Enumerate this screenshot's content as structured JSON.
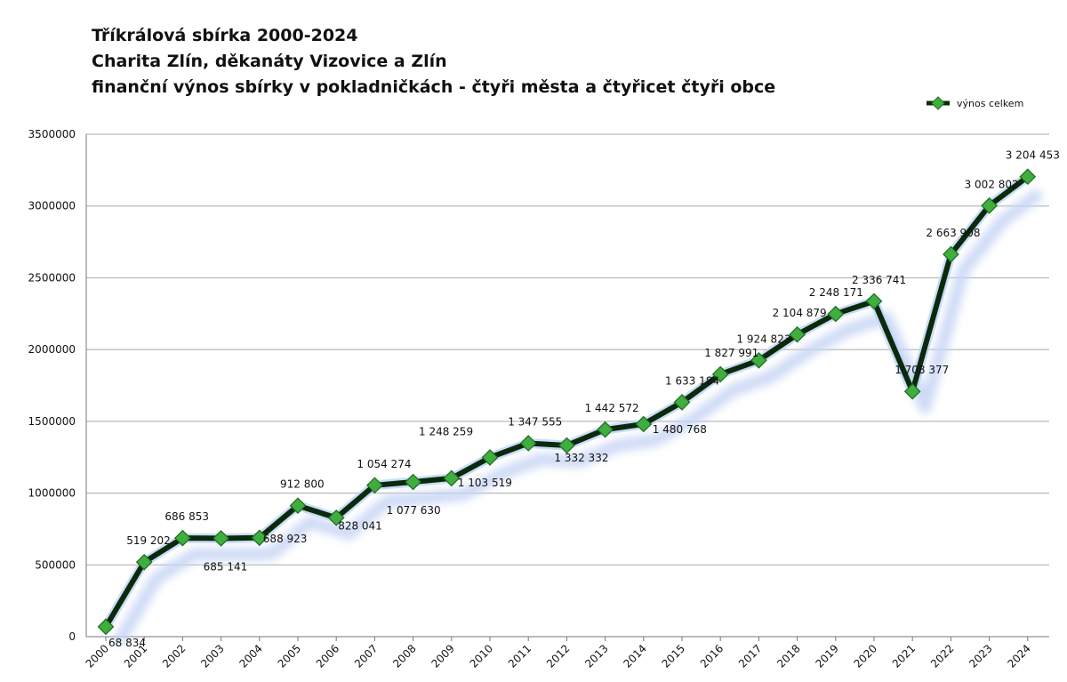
{
  "title_lines": [
    "Tříkrálová sbírka 2000-2024",
    "Charita Zlín, děkanáty Vizovice a Zlín",
    "finanční výnos sbírky v pokladničkách - čtyři města a čtyřicet čtyři obce"
  ],
  "chart_data": {
    "type": "line",
    "title": "Tříkrálová sbírka 2000-2024",
    "xlabel": "",
    "ylabel": "",
    "ylim": [
      0,
      3500000
    ],
    "y_ticks": [
      "0",
      "500000",
      "1000000",
      "1500000",
      "2000000",
      "2500000",
      "3000000",
      "3500000"
    ],
    "y_tick_values": [
      0,
      500000,
      1000000,
      1500000,
      2000000,
      2500000,
      3000000,
      3500000
    ],
    "grid": "horizontal",
    "legend_position": "top-right",
    "categories": [
      "2000",
      "2001",
      "2002",
      "2003",
      "2004",
      "2005",
      "2006",
      "2007",
      "2008",
      "2009",
      "2010",
      "2011",
      "2012",
      "2013",
      "2014",
      "2015",
      "2016",
      "2017",
      "2018",
      "2019",
      "2020",
      "2021",
      "2022",
      "2023",
      "2024"
    ],
    "series": [
      {
        "name": "výnos celkem",
        "color": "#0b2a0b",
        "marker_color": "#3fae3f",
        "values": [
          68834,
          519202,
          686853,
          685141,
          688923,
          912800,
          828041,
          1054274,
          1077630,
          1103519,
          1248259,
          1347555,
          1332332,
          1442572,
          1480768,
          1633184,
          1827991,
          1924823,
          2104879,
          2248171,
          2336741,
          1708377,
          2663908,
          3002802,
          3204453
        ],
        "data_labels": [
          "68 834",
          "519 202",
          "686 853",
          "685 141",
          "688 923",
          "912 800",
          "828 041",
          "1 054 274",
          "1 077 630",
          "1 103 519",
          "1 248 259",
          "1 347 555",
          "1 332 332",
          "1 442 572",
          "1 480 768",
          "1 633 184",
          "1 827 991",
          "1 924 823",
          "2 104 879",
          "2 248 171",
          "2 336 741",
          "1 708 377",
          "2 663 908",
          "3 002 802",
          "3 204 453"
        ]
      }
    ]
  }
}
